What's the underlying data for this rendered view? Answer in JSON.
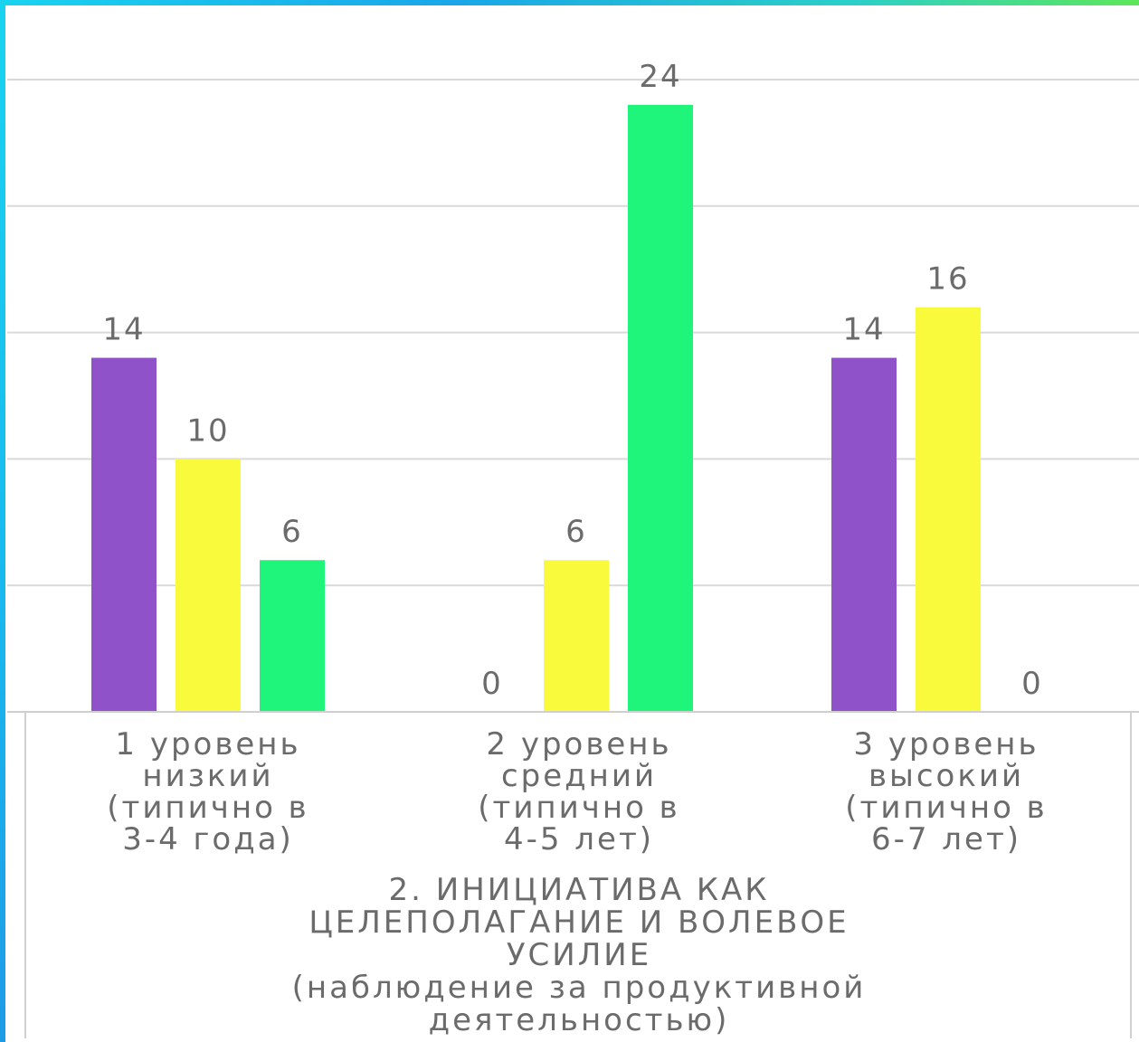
{
  "chart_data": {
    "type": "bar",
    "categories": [
      "1 уровень\nнизкий\n(типично в\n3-4 года)",
      "2 уровень\nсредний\n(типично в\n4-5 лет)",
      "3 уровень\nвысокий\n(типично в\n6-7 лет)"
    ],
    "series": [
      {
        "values": [
          14,
          0,
          14
        ],
        "color": "#9052c8"
      },
      {
        "values": [
          10,
          6,
          16
        ],
        "color": "#fafa3c"
      },
      {
        "values": [
          6,
          24,
          0
        ],
        "color": "#1ef57a"
      }
    ],
    "xlabel": "2. ИНИЦИАТИВА КАК\nЦЕЛЕПОЛАГАНИЕ И ВОЛЕВОЕ\nУСИЛИЕ\n(наблюдение за продуктивной\nдеятельностью)",
    "ylabel": "",
    "ylim": [
      0,
      25
    ],
    "grid": true,
    "gridline_values": [
      5,
      10,
      15,
      20,
      25
    ],
    "legend": false
  }
}
